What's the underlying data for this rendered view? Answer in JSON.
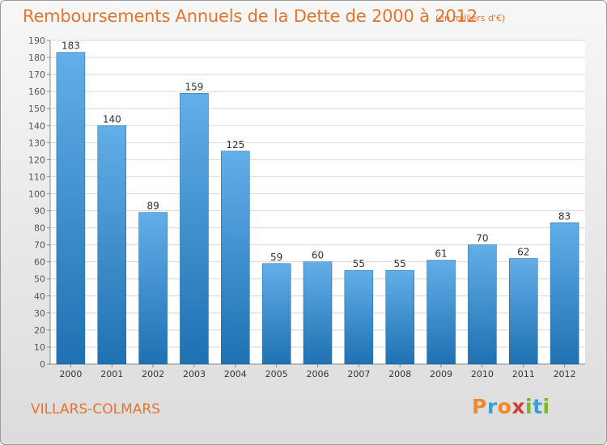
{
  "header": {
    "title": "Remboursements Annuels de la Dette de 2000 à 2012",
    "unit": "(en milliers d'€)"
  },
  "footer": {
    "place": "VILLARS-COLMARS",
    "logo": "Proxiti"
  },
  "colors": {
    "accent": "#e3752f",
    "bar_light": "#62aee8",
    "bar_dark": "#1f71b2",
    "grid": "#d7d7d7"
  },
  "chart_data": {
    "type": "bar",
    "categories": [
      "2000",
      "2001",
      "2002",
      "2003",
      "2004",
      "2005",
      "2006",
      "2007",
      "2008",
      "2009",
      "2010",
      "2011",
      "2012"
    ],
    "values": [
      183,
      140,
      89,
      159,
      125,
      59,
      60,
      55,
      55,
      61,
      70,
      62,
      83
    ],
    "data_labels": [
      "183",
      "140",
      "89",
      "159",
      "125",
      "59",
      "60",
      "55",
      "55",
      "61",
      "70",
      "62",
      "83"
    ],
    "ylim": [
      0,
      190
    ],
    "yticks": [
      0,
      10,
      20,
      30,
      40,
      50,
      60,
      70,
      80,
      90,
      100,
      110,
      120,
      130,
      140,
      150,
      160,
      170,
      180,
      190
    ],
    "grid": true,
    "legend": "none"
  }
}
